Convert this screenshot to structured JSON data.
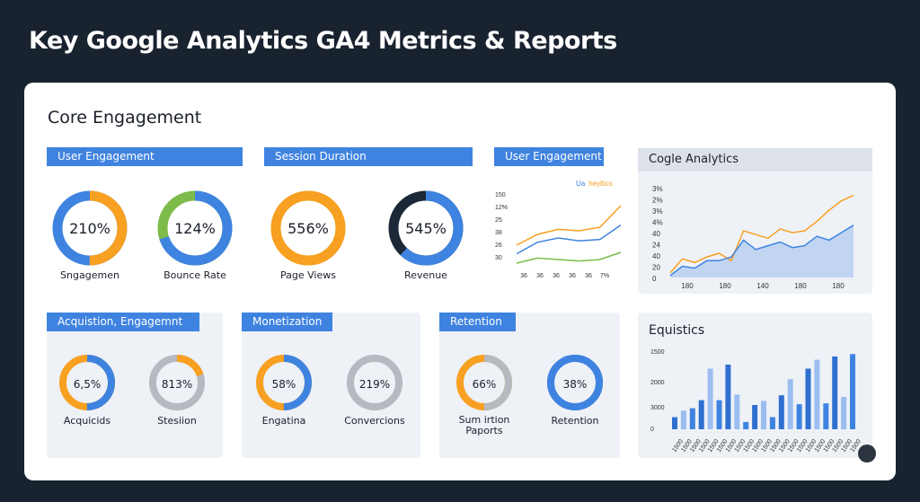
{
  "page": {
    "title": "Key Google Analytics GA4 Metrics & Reports"
  },
  "card": {
    "title": "Core Engagement"
  },
  "tags": {
    "user_engagement": "User Engagement",
    "session_duration": "Session Duration",
    "user_engagement_2": "User Engagement",
    "acquisition": "Acquistion, Engagemnt",
    "monetization": "Monetization",
    "retention": "Retention"
  },
  "donuts_top": [
    {
      "value": "210%",
      "label": "Sngagemen",
      "fraction": 0.5,
      "color_a": "#f7a021",
      "color_b": "#3f83e0"
    },
    {
      "value": "124%",
      "label": "Bounce Rate",
      "fraction": 0.7,
      "color_a": "#3f83e0",
      "color_b": "#7dbb4a"
    },
    {
      "value": "556%",
      "label": "Page Views",
      "fraction": 0.75,
      "color_a": "#f7a021",
      "color_b": "#f7a021"
    },
    {
      "value": "545%",
      "label": "Revenue",
      "fraction": 0.62,
      "color_a": "#3f83e0",
      "color_b": "#1c2838"
    }
  ],
  "donuts_bottom": [
    {
      "value": "6,5%",
      "label": "Acquicids",
      "fraction": 0.5,
      "color_a": "#3f83e0",
      "color_b": "#f7a021"
    },
    {
      "value": "813%",
      "label": "Stesiion",
      "fraction": 0.2,
      "color_a": "#f7a021",
      "color_b": "#b5b9c0"
    },
    {
      "value": "58%",
      "label": "Engatina",
      "fraction": 0.5,
      "color_a": "#3f83e0",
      "color_b": "#f7a021"
    },
    {
      "value": "219%",
      "label": "Convercions",
      "fraction": 0.0,
      "color_a": "#b5b9c0",
      "color_b": "#b5b9c0"
    },
    {
      "value": "66%",
      "label": "Sum irtion",
      "label2": "Paports",
      "fraction": 0.5,
      "color_a": "#b5b9c0",
      "color_b": "#f7a021"
    },
    {
      "value": "38%",
      "label": "Retention",
      "fraction": 1.0,
      "color_a": "#3f83e0",
      "color_b": "#3f83e0"
    }
  ],
  "small_chart": {
    "legend_a": "Ua",
    "legend_b": "heyltics",
    "y_ticks": [
      "150",
      "12%",
      "25",
      "38",
      "26",
      "30"
    ],
    "x_ticks": [
      "36",
      "36",
      "36",
      "36",
      "36",
      "7%"
    ]
  },
  "chart_data": [
    {
      "type": "line",
      "title": "",
      "x": [
        1,
        2,
        3,
        4,
        5,
        6
      ],
      "series": [
        {
          "values": [
            30,
            45,
            52,
            50,
            55,
            85
          ],
          "color": "#f7a021"
        },
        {
          "values": [
            18,
            34,
            40,
            36,
            38,
            58
          ],
          "color": "#3f83e0"
        },
        {
          "values": [
            5,
            12,
            10,
            8,
            10,
            20
          ],
          "color": "#7dbb4a"
        }
      ],
      "ylim": [
        0,
        100
      ]
    },
    {
      "type": "area",
      "title": "Cogle Analytics",
      "y_ticks": [
        "3%",
        "2%",
        "3%",
        "4%",
        "40",
        "24",
        "40",
        "20",
        "0"
      ],
      "x_ticks": [
        "180",
        "180",
        "140",
        "180",
        "180"
      ],
      "series": [
        {
          "values": [
            5,
            20,
            16,
            22,
            26,
            18,
            50,
            46,
            42,
            52,
            48,
            50,
            60,
            72,
            82,
            88
          ],
          "color": "#f7a021"
        },
        {
          "values": [
            2,
            12,
            10,
            18,
            18,
            22,
            40,
            30,
            34,
            38,
            32,
            34,
            44,
            40,
            48,
            56
          ],
          "color": "#3f83e0"
        }
      ],
      "ylim": [
        0,
        100
      ]
    },
    {
      "type": "bar",
      "title": "Equistics",
      "y_ticks": [
        "1500",
        "2000",
        "3000",
        "0"
      ],
      "x_ticks": [
        "1500",
        "1500",
        "1500",
        "1500",
        "1500",
        "1500",
        "1500",
        "1500",
        "1500",
        "1500",
        "1500",
        "1500",
        "1500",
        "1500",
        "1500",
        "1500",
        "1500",
        "1500",
        "1500",
        "1500",
        "1500"
      ],
      "series": [
        {
          "name": "",
          "values": [
            15,
            23,
            26,
            36,
            75,
            36,
            80,
            43,
            9,
            30,
            35,
            15,
            42,
            62,
            31,
            75,
            86,
            32,
            90,
            40,
            93
          ],
          "colors_pattern": "mixed"
        }
      ],
      "ylim": [
        0,
        100
      ]
    }
  ]
}
